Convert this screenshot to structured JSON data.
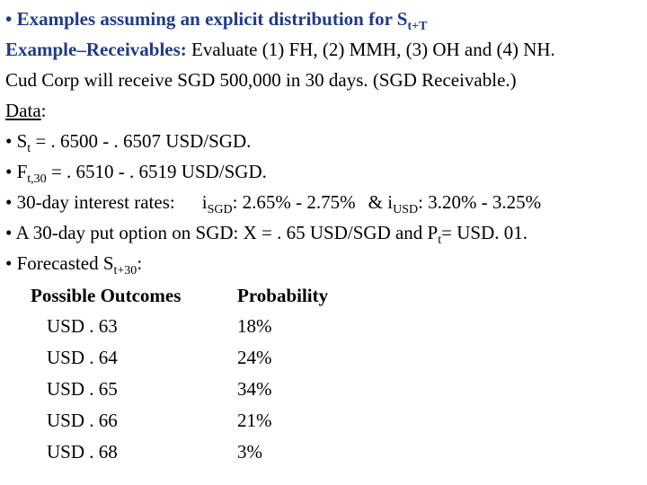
{
  "header": {
    "bullet": "•",
    "title_main": "Examples assuming an explicit distribution for S",
    "title_sub": "t+T"
  },
  "example": {
    "label": "Example–Receivables:",
    "text": " Evaluate (1) FH, (2) MMH, (3) OH and (4) NH."
  },
  "intro": "Cud Corp will receive  SGD 500,000 in 30 days. (SGD Receivable.)",
  "data_label": "Data",
  "data_colon": ":",
  "bullets": {
    "spot": {
      "bullet": "•",
      "var": "S",
      "sub": "t",
      "text": " = . 6500 - . 6507 USD/SGD."
    },
    "forward": {
      "bullet": "•",
      "var": "F",
      "sub": "t,30",
      "text": " = . 6510 - . 6519 USD/SGD."
    },
    "interest": {
      "bullet": "•",
      "label": "30-day interest rates:",
      "i1": "i",
      "i1_sub": "SGD",
      "i1_text": ": 2.65% - 2.75%",
      "amp": "&",
      "i2": "i",
      "i2_sub": "USD",
      "i2_text": ": 3.20% - 3.25%"
    },
    "option": {
      "bullet": "•",
      "text": "A 30-day put option on SGD: X = . 65 USD/SGD and P",
      "sub": "t",
      "text2": "= USD. 01."
    },
    "forecast": {
      "bullet": "•",
      "text": "Forecasted S",
      "sub": "t+30",
      "text2": ":"
    }
  },
  "table": {
    "headers": [
      "Possible Outcomes",
      "Probability"
    ],
    "rows": [
      [
        "USD . 63",
        "18%"
      ],
      [
        "USD . 64",
        "24%"
      ],
      [
        "USD . 65",
        "34%"
      ],
      [
        "USD . 66",
        "21%"
      ],
      [
        "USD . 68",
        "3%"
      ]
    ]
  }
}
